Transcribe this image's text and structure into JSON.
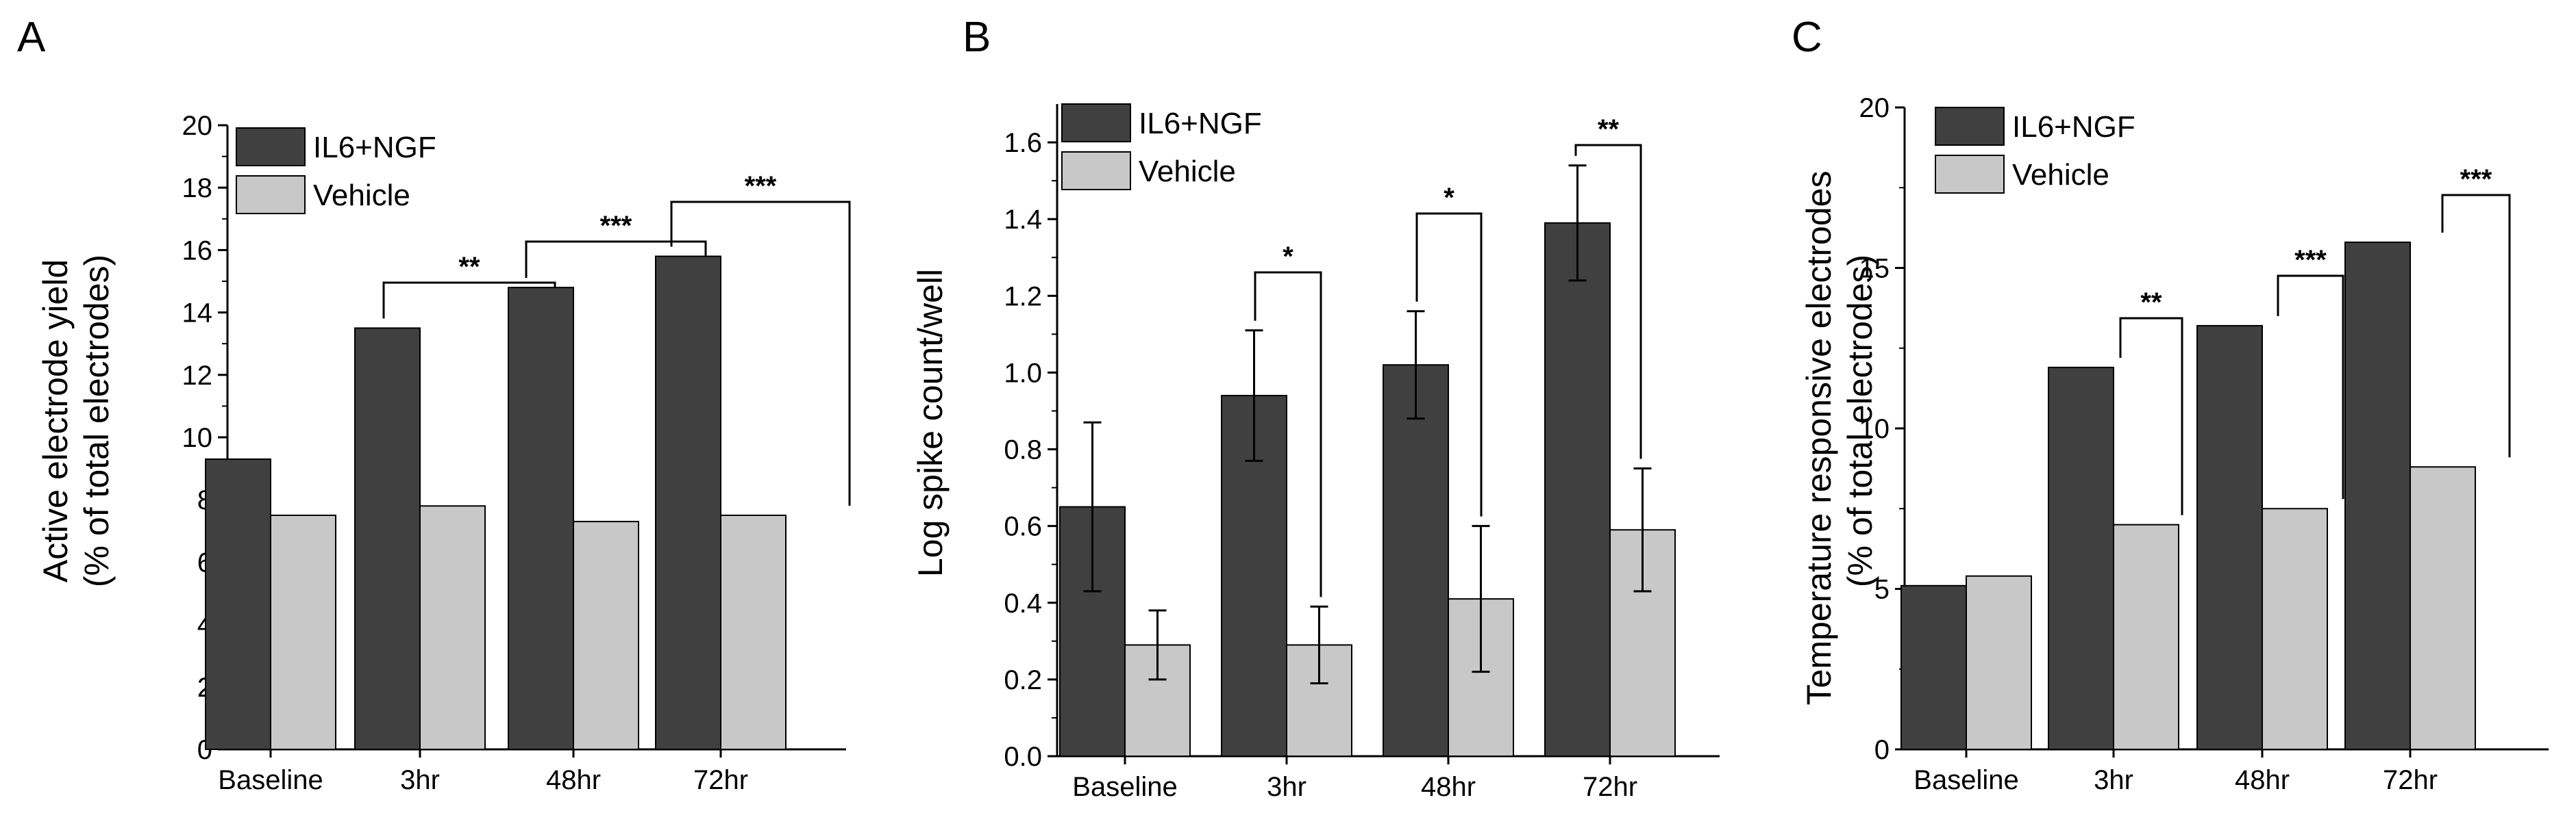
{
  "colors": {
    "il6ngf": "#404040",
    "vehicle": "#c8c8c8",
    "axis": "#000000"
  },
  "chart_data": [
    {
      "type": "bar",
      "panel": "A",
      "categories": [
        "Baseline",
        "3hr",
        "48hr",
        "72hr"
      ],
      "series": [
        {
          "name": "IL6+NGF",
          "values": [
            9.3,
            13.5,
            14.8,
            15.8
          ]
        },
        {
          "name": "Vehicle",
          "values": [
            7.5,
            7.8,
            7.3,
            7.5
          ]
        }
      ],
      "ylabel_line1": "Active electrode yield",
      "ylabel_line2": "(% of total electrodes)",
      "ylim": [
        0,
        20
      ],
      "yticks": [
        0,
        2,
        4,
        6,
        8,
        10,
        12,
        14,
        16,
        18,
        20
      ],
      "significance": [
        "",
        "**",
        "***",
        "***"
      ],
      "legend": [
        "IL6+NGF",
        "Vehicle"
      ]
    },
    {
      "type": "bar",
      "panel": "B",
      "categories": [
        "Baseline",
        "3hr",
        "48hr",
        "72hr"
      ],
      "series": [
        {
          "name": "IL6+NGF",
          "values": [
            0.65,
            0.94,
            1.02,
            1.39
          ],
          "errors": [
            0.22,
            0.17,
            0.14,
            0.15
          ]
        },
        {
          "name": "Vehicle",
          "values": [
            0.29,
            0.29,
            0.41,
            0.59
          ],
          "errors": [
            0.09,
            0.1,
            0.19,
            0.16
          ]
        }
      ],
      "ylabel_line1": "Log spike count/well",
      "ylabel_line2": "",
      "ylim": [
        0,
        1.7
      ],
      "yticks": [
        "0.0",
        "0.2",
        "0.4",
        "0.6",
        "0.8",
        "1.0",
        "1.2",
        "1.4",
        "1.6"
      ],
      "significance": [
        "",
        "*",
        "*",
        "**"
      ],
      "legend": [
        "IL6+NGF",
        "Vehicle"
      ]
    },
    {
      "type": "bar",
      "panel": "C",
      "categories": [
        "Baseline",
        "3hr",
        "48hr",
        "72hr"
      ],
      "series": [
        {
          "name": "IL6+NGF",
          "values": [
            5.1,
            11.9,
            13.2,
            15.8
          ]
        },
        {
          "name": "Vehicle",
          "values": [
            5.4,
            7.0,
            7.5,
            8.8
          ]
        }
      ],
      "ylabel_line1": "Temperature responsive electrodes",
      "ylabel_line2": "(% of total electrodes)",
      "ylim": [
        0,
        20
      ],
      "yticks": [
        0,
        5,
        10,
        15,
        20
      ],
      "significance": [
        "",
        "**",
        "***",
        "***"
      ],
      "legend": [
        "IL6+NGF",
        "Vehicle"
      ]
    }
  ]
}
